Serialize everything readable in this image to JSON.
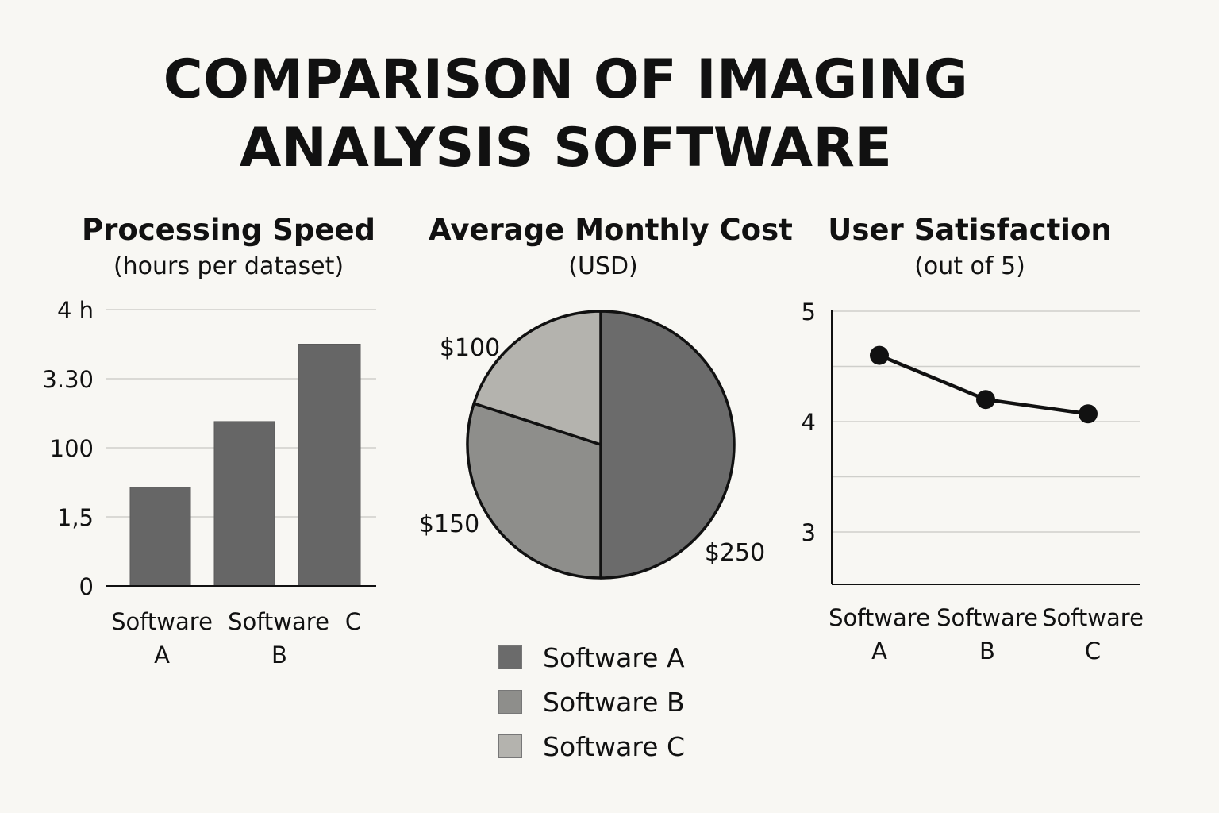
{
  "title": {
    "line1": "COMPARISON OF IMAGING",
    "line2": "ANALYSIS SOFTWARE"
  },
  "chart_data": [
    {
      "type": "bar",
      "title": "Processing Speed",
      "subtitle": "(hours per dataset)",
      "y_tick_labels": [
        "0",
        "1,5",
        "100",
        "3.30",
        "4 h"
      ],
      "categories": [
        [
          "Software",
          "A"
        ],
        [
          "Software",
          "B"
        ],
        [
          "C"
        ]
      ],
      "values": [
        1.43,
        2.38,
        3.5
      ],
      "ylim": [
        0,
        4
      ],
      "grid": true,
      "color": "#666666"
    },
    {
      "type": "pie",
      "title": "Average Monthly Cost",
      "subtitle": "(USD)",
      "slices": [
        {
          "label": "$250",
          "legend": "Software A",
          "value": 250,
          "color": "#6b6b6b"
        },
        {
          "label": "$150",
          "legend": "Software B",
          "value": 150,
          "color": "#8e8e8b"
        },
        {
          "label": "$100",
          "legend": "Software C",
          "value": 100,
          "color": "#b4b3ae"
        }
      ],
      "legend_position": "bottom"
    },
    {
      "type": "line",
      "title": "User Satisfaction",
      "subtitle": "(out of 5)",
      "categories": [
        [
          "Software",
          "A"
        ],
        [
          "Software",
          "B"
        ],
        [
          "Software",
          "C"
        ]
      ],
      "values": [
        4.6,
        4.2,
        4.07
      ],
      "y_tick_labels": [
        "3",
        "4",
        "5"
      ],
      "ylim": [
        2.55,
        5
      ],
      "grid": true,
      "color": "#111111"
    }
  ]
}
